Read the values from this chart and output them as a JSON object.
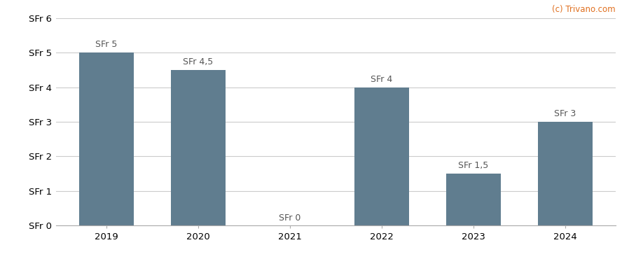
{
  "categories": [
    "2019",
    "2020",
    "2021",
    "2022",
    "2023",
    "2024"
  ],
  "values": [
    5.0,
    4.5,
    0.0,
    4.0,
    1.5,
    3.0
  ],
  "bar_labels": [
    "SFr 5",
    "SFr 4,5",
    "SFr 0",
    "SFr 4",
    "SFr 1,5",
    "SFr 3"
  ],
  "bar_color": "#607d8f",
  "background_color": "#ffffff",
  "ylim": [
    0,
    6
  ],
  "yticks": [
    0,
    1,
    2,
    3,
    4,
    5,
    6
  ],
  "ytick_labels": [
    "SFr 0",
    "SFr 1",
    "SFr 2",
    "SFr 3",
    "SFr 4",
    "SFr 5",
    "SFr 6"
  ],
  "grid_color": "#cccccc",
  "watermark": "(c) Trivano.com",
  "watermark_color": "#e07020",
  "bar_label_color": "#555555",
  "bar_label_fontsize": 9.0,
  "axis_label_fontsize": 9.5,
  "watermark_fontsize": 8.5
}
